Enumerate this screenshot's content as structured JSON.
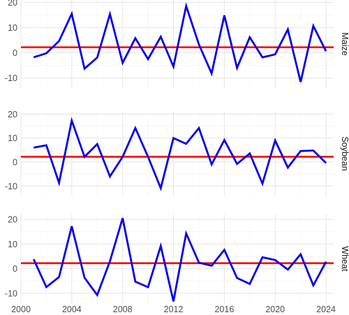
{
  "chart_data": {
    "type": "line",
    "facet_layout": "vertical",
    "grid": true,
    "background": "#ffffff",
    "grid_color": "#e5e5e5",
    "line_color": "#0000ee",
    "reference_line_color": "#ff0000",
    "reference_line_value": 2.2,
    "x_ticks": [
      2000,
      2004,
      2008,
      2012,
      2016,
      2020,
      2024
    ],
    "xlim": [
      2000,
      2024.6
    ],
    "x": [
      2001,
      2002,
      2003,
      2004,
      2005,
      2006,
      2007,
      2008,
      2009,
      2010,
      2011,
      2012,
      2013,
      2014,
      2015,
      2016,
      2017,
      2018,
      2019,
      2020,
      2021,
      2022,
      2023,
      2024
    ],
    "panels": [
      {
        "label": "Maize",
        "ylim": [
          -14,
          21
        ],
        "y_ticks": [
          -10,
          0,
          10,
          20
        ],
        "y_tick_labels": [
          "-10",
          "0",
          "10",
          "20"
        ],
        "values": [
          -1.8,
          -0.2,
          4.7,
          15.5,
          -6.3,
          -1.9,
          15.4,
          -4.0,
          5.8,
          -2.5,
          6.4,
          -5.5,
          18.6,
          3.3,
          -8.2,
          14.9,
          -6.0,
          6.2,
          -1.8,
          -0.6,
          9.3,
          -11.6,
          10.7,
          0.6
        ]
      },
      {
        "label": "Soybean",
        "ylim": [
          -14,
          21
        ],
        "y_ticks": [
          -10,
          0,
          10,
          20
        ],
        "y_tick_labels": [
          "-10",
          "0",
          "10",
          "20"
        ],
        "values": [
          6.0,
          7.0,
          -8.7,
          17.3,
          2.2,
          7.5,
          -6.0,
          2.2,
          14.2,
          2.2,
          -10.9,
          10.0,
          7.6,
          14.2,
          -1.0,
          9.2,
          -0.8,
          3.6,
          -9.0,
          9.0,
          -2.3,
          4.6,
          4.8,
          -0.4
        ]
      },
      {
        "label": "Wheat",
        "ylim": [
          -14,
          22
        ],
        "y_ticks": [
          -10,
          0,
          10,
          20
        ],
        "y_tick_labels": [
          "-10",
          "0",
          "10",
          "20"
        ],
        "values": [
          3.8,
          -7.5,
          -3.4,
          17.2,
          -3.7,
          -10.7,
          3.0,
          20.5,
          -5.3,
          -7.5,
          9.2,
          -13.3,
          14.3,
          2.4,
          1.2,
          7.6,
          -3.8,
          -6.2,
          4.6,
          3.5,
          -0.4,
          5.8,
          -6.8,
          2.8
        ]
      }
    ]
  }
}
